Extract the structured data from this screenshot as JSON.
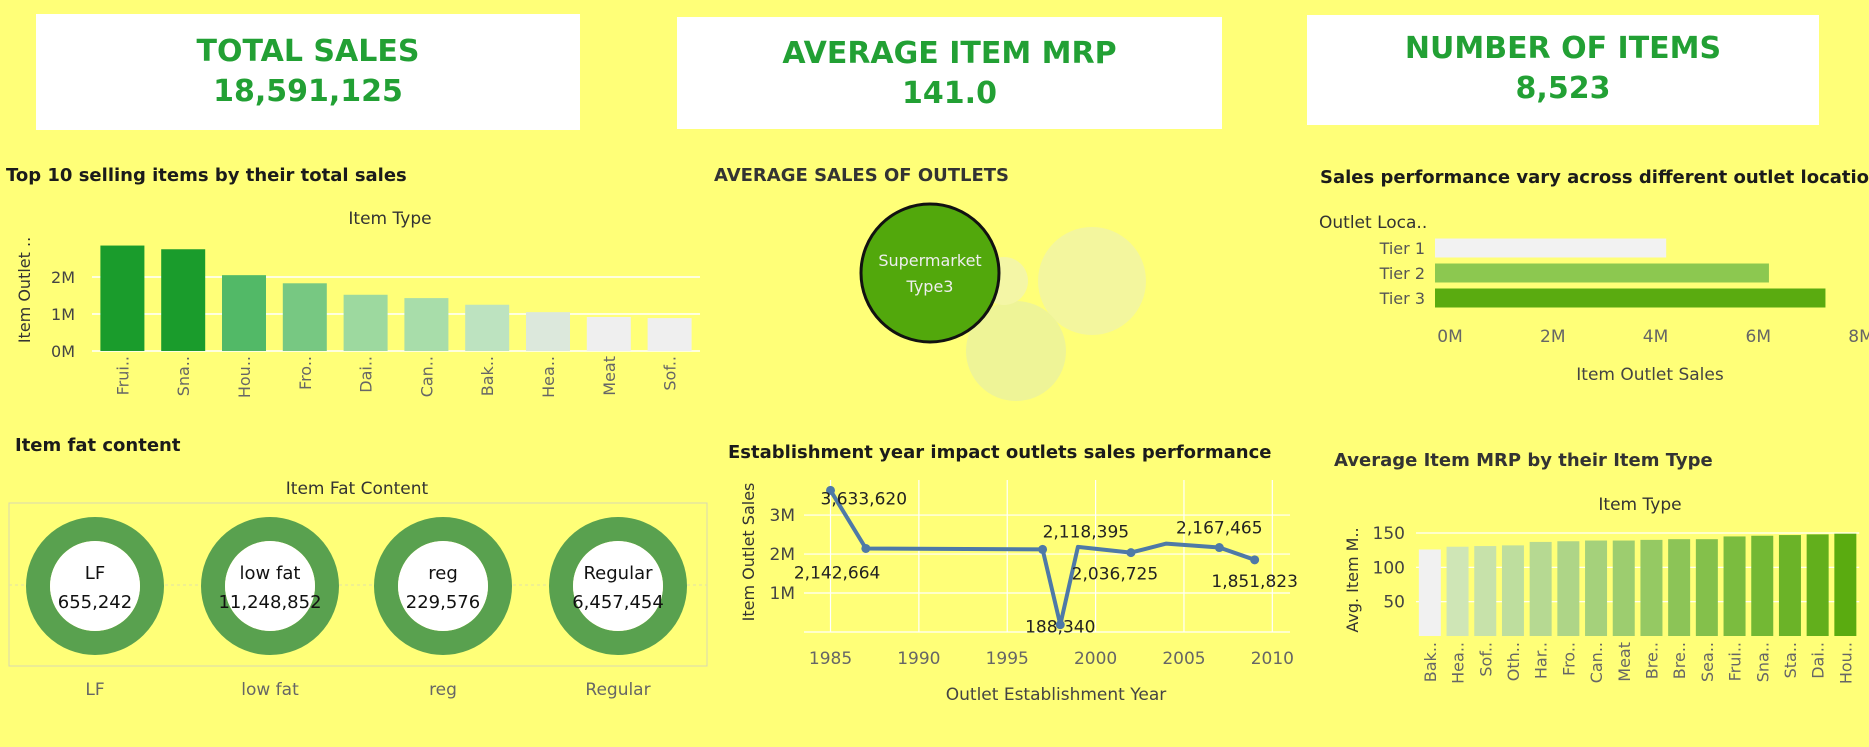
{
  "colors": {
    "background": "#ffff78",
    "kpi_text": "#22a034",
    "line": "#4e79a7",
    "donut_ring": "#59a14f"
  },
  "kpis": [
    {
      "title": "TOTAL SALES",
      "value": "18,591,125"
    },
    {
      "title": "AVERAGE ITEM MRP",
      "value": "141.0"
    },
    {
      "title": "NUMBER OF ITEMS",
      "value": "8,523"
    }
  ],
  "panels": {
    "top10_title": "Top 10 selling items by their total sales",
    "outlets_title": "AVERAGE SALES OF OUTLETS",
    "location_title": "Sales performance vary across different outlet locations",
    "fat_title": "Item fat content",
    "year_title": "Establishment year impact outlets sales performance",
    "mrp_title": "Average Item MRP by their Item Type"
  },
  "chart_data": [
    {
      "id": "top10",
      "type": "bar",
      "column_header": "Item Type",
      "ylabel": "Item Outlet ..",
      "categories": [
        "Frui..",
        "Sna..",
        "Hou..",
        "Fro..",
        "Dai..",
        "Can..",
        "Bak..",
        "Hea..",
        "Meat",
        "Sof.."
      ],
      "values": [
        2850000,
        2750000,
        2050000,
        1830000,
        1520000,
        1430000,
        1250000,
        1050000,
        920000,
        890000
      ],
      "yticks": [
        {
          "value": 0,
          "label": "0M"
        },
        {
          "value": 1000000,
          "label": "1M"
        },
        {
          "value": 2000000,
          "label": "2M"
        }
      ],
      "ylim": [
        0,
        3000000
      ],
      "colors": [
        "#1a9c2c",
        "#1a9c2c",
        "#52b967",
        "#77c882",
        "#9dd99f",
        "#a8ddaa",
        "#bde3c0",
        "#dce8dc",
        "#efefef",
        "#efefef"
      ]
    },
    {
      "id": "outlets",
      "type": "bubble",
      "labeled_bubble": "Supermarket Type3"
    },
    {
      "id": "location",
      "type": "bar",
      "orientation": "horizontal",
      "row_header": "Outlet Loca..",
      "categories": [
        "Tier 1",
        "Tier 2",
        "Tier 3"
      ],
      "values": [
        4500000,
        6500000,
        7600000
      ],
      "xlabel": "Item Outlet Sales",
      "xticks": [
        {
          "value": 0,
          "label": "0M"
        },
        {
          "value": 2000000,
          "label": "2M"
        },
        {
          "value": 4000000,
          "label": "4M"
        },
        {
          "value": 6000000,
          "label": "6M"
        },
        {
          "value": 8000000,
          "label": "8M"
        }
      ],
      "xlim": [
        0,
        8000000
      ],
      "colors": [
        "#f2f2f2",
        "#8cc850",
        "#5aab10"
      ]
    },
    {
      "id": "fat",
      "type": "donut",
      "column_header": "Item Fat Content",
      "categories": [
        "LF",
        "low fat",
        "reg",
        "Regular"
      ],
      "values": [
        655242,
        11248852,
        229576,
        6457454
      ],
      "value_labels": [
        "655,242",
        "11,248,852",
        "229,576",
        "6,457,454"
      ]
    },
    {
      "id": "year",
      "type": "line",
      "xlabel": "Outlet Establishment Year",
      "ylabel": "Item Outlet Sales",
      "x": [
        1985,
        1987,
        1997,
        1998,
        1999,
        2002,
        2004,
        2007,
        2009
      ],
      "y": [
        3633620,
        2142664,
        2118395,
        188340,
        2183970,
        2036725,
        2268125,
        2167465,
        1851823
      ],
      "point_labels": [
        {
          "x": 1985,
          "text": "3,633,620"
        },
        {
          "x": 1987,
          "text": "2,142,664"
        },
        {
          "x": 1997,
          "text": "2,118,395"
        },
        {
          "x": 1998,
          "text": "188,340"
        },
        {
          "x": 2002,
          "text": "2,036,725"
        },
        {
          "x": 2007,
          "text": "2,167,465"
        },
        {
          "x": 2009,
          "text": "1,851,823"
        }
      ],
      "xticks": [
        1985,
        1990,
        1995,
        2000,
        2005,
        2010
      ],
      "yticks": [
        {
          "value": 1000000,
          "label": "1M"
        },
        {
          "value": 2000000,
          "label": "2M"
        },
        {
          "value": 3000000,
          "label": "3M"
        }
      ],
      "xlim": [
        1983.5,
        2011
      ],
      "ylim": [
        0,
        3900000
      ]
    },
    {
      "id": "mrp",
      "type": "bar",
      "column_header": "Item Type",
      "ylabel": "Avg. Item M..",
      "categories": [
        "Bak..",
        "Hea..",
        "Sof..",
        "Oth..",
        "Har..",
        "Fro..",
        "Can..",
        "Meat",
        "Bre..",
        "Bre..",
        "Sea..",
        "Frui..",
        "Sna..",
        "Sta..",
        "Dai..",
        "Hou.."
      ],
      "values": [
        126,
        130,
        131,
        132,
        137,
        138,
        139,
        139,
        140,
        141,
        141,
        145,
        146,
        147,
        148,
        149
      ],
      "yticks": [
        {
          "value": 50,
          "label": "50"
        },
        {
          "value": 100,
          "label": "100"
        },
        {
          "value": 150,
          "label": "150"
        }
      ],
      "ylim": [
        0,
        150
      ]
    }
  ]
}
